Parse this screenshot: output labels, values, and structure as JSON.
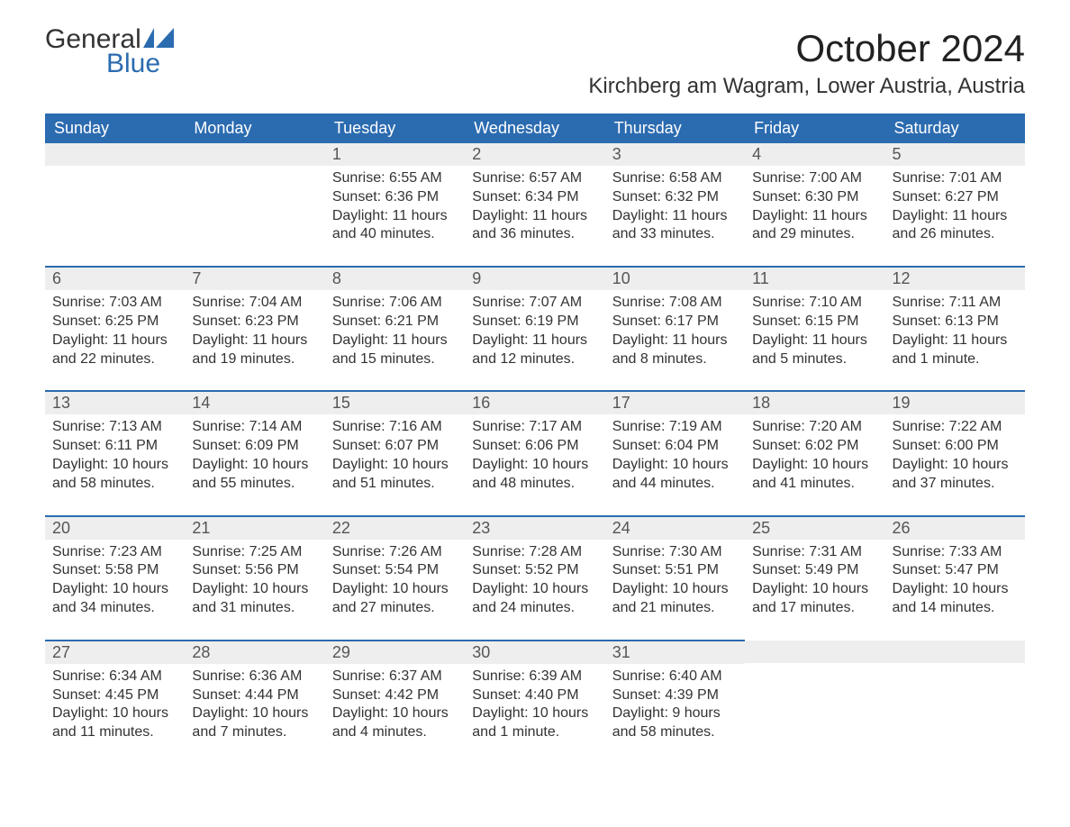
{
  "brand": {
    "general": "General",
    "blue": "Blue"
  },
  "title": "October 2024",
  "subtitle": "Kirchberg am Wagram, Lower Austria, Austria",
  "colors": {
    "accent": "#2b6bb0",
    "header_row": "#eeeeee",
    "bg": "#ffffff",
    "text": "#333333"
  },
  "day_names": [
    "Sunday",
    "Monday",
    "Tuesday",
    "Wednesday",
    "Thursday",
    "Friday",
    "Saturday"
  ],
  "weeks": [
    [
      null,
      null,
      {
        "n": "1",
        "sunrise": "6:55 AM",
        "sunset": "6:36 PM",
        "daylight": "11 hours and 40 minutes."
      },
      {
        "n": "2",
        "sunrise": "6:57 AM",
        "sunset": "6:34 PM",
        "daylight": "11 hours and 36 minutes."
      },
      {
        "n": "3",
        "sunrise": "6:58 AM",
        "sunset": "6:32 PM",
        "daylight": "11 hours and 33 minutes."
      },
      {
        "n": "4",
        "sunrise": "7:00 AM",
        "sunset": "6:30 PM",
        "daylight": "11 hours and 29 minutes."
      },
      {
        "n": "5",
        "sunrise": "7:01 AM",
        "sunset": "6:27 PM",
        "daylight": "11 hours and 26 minutes."
      }
    ],
    [
      {
        "n": "6",
        "sunrise": "7:03 AM",
        "sunset": "6:25 PM",
        "daylight": "11 hours and 22 minutes."
      },
      {
        "n": "7",
        "sunrise": "7:04 AM",
        "sunset": "6:23 PM",
        "daylight": "11 hours and 19 minutes."
      },
      {
        "n": "8",
        "sunrise": "7:06 AM",
        "sunset": "6:21 PM",
        "daylight": "11 hours and 15 minutes."
      },
      {
        "n": "9",
        "sunrise": "7:07 AM",
        "sunset": "6:19 PM",
        "daylight": "11 hours and 12 minutes."
      },
      {
        "n": "10",
        "sunrise": "7:08 AM",
        "sunset": "6:17 PM",
        "daylight": "11 hours and 8 minutes."
      },
      {
        "n": "11",
        "sunrise": "7:10 AM",
        "sunset": "6:15 PM",
        "daylight": "11 hours and 5 minutes."
      },
      {
        "n": "12",
        "sunrise": "7:11 AM",
        "sunset": "6:13 PM",
        "daylight": "11 hours and 1 minute."
      }
    ],
    [
      {
        "n": "13",
        "sunrise": "7:13 AM",
        "sunset": "6:11 PM",
        "daylight": "10 hours and 58 minutes."
      },
      {
        "n": "14",
        "sunrise": "7:14 AM",
        "sunset": "6:09 PM",
        "daylight": "10 hours and 55 minutes."
      },
      {
        "n": "15",
        "sunrise": "7:16 AM",
        "sunset": "6:07 PM",
        "daylight": "10 hours and 51 minutes."
      },
      {
        "n": "16",
        "sunrise": "7:17 AM",
        "sunset": "6:06 PM",
        "daylight": "10 hours and 48 minutes."
      },
      {
        "n": "17",
        "sunrise": "7:19 AM",
        "sunset": "6:04 PM",
        "daylight": "10 hours and 44 minutes."
      },
      {
        "n": "18",
        "sunrise": "7:20 AM",
        "sunset": "6:02 PM",
        "daylight": "10 hours and 41 minutes."
      },
      {
        "n": "19",
        "sunrise": "7:22 AM",
        "sunset": "6:00 PM",
        "daylight": "10 hours and 37 minutes."
      }
    ],
    [
      {
        "n": "20",
        "sunrise": "7:23 AM",
        "sunset": "5:58 PM",
        "daylight": "10 hours and 34 minutes."
      },
      {
        "n": "21",
        "sunrise": "7:25 AM",
        "sunset": "5:56 PM",
        "daylight": "10 hours and 31 minutes."
      },
      {
        "n": "22",
        "sunrise": "7:26 AM",
        "sunset": "5:54 PM",
        "daylight": "10 hours and 27 minutes."
      },
      {
        "n": "23",
        "sunrise": "7:28 AM",
        "sunset": "5:52 PM",
        "daylight": "10 hours and 24 minutes."
      },
      {
        "n": "24",
        "sunrise": "7:30 AM",
        "sunset": "5:51 PM",
        "daylight": "10 hours and 21 minutes."
      },
      {
        "n": "25",
        "sunrise": "7:31 AM",
        "sunset": "5:49 PM",
        "daylight": "10 hours and 17 minutes."
      },
      {
        "n": "26",
        "sunrise": "7:33 AM",
        "sunset": "5:47 PM",
        "daylight": "10 hours and 14 minutes."
      }
    ],
    [
      {
        "n": "27",
        "sunrise": "6:34 AM",
        "sunset": "4:45 PM",
        "daylight": "10 hours and 11 minutes."
      },
      {
        "n": "28",
        "sunrise": "6:36 AM",
        "sunset": "4:44 PM",
        "daylight": "10 hours and 7 minutes."
      },
      {
        "n": "29",
        "sunrise": "6:37 AM",
        "sunset": "4:42 PM",
        "daylight": "10 hours and 4 minutes."
      },
      {
        "n": "30",
        "sunrise": "6:39 AM",
        "sunset": "4:40 PM",
        "daylight": "10 hours and 1 minute."
      },
      {
        "n": "31",
        "sunrise": "6:40 AM",
        "sunset": "4:39 PM",
        "daylight": "9 hours and 58 minutes."
      },
      null,
      null
    ]
  ],
  "labels": {
    "sunrise": "Sunrise: ",
    "sunset": "Sunset: ",
    "daylight": "Daylight: "
  }
}
